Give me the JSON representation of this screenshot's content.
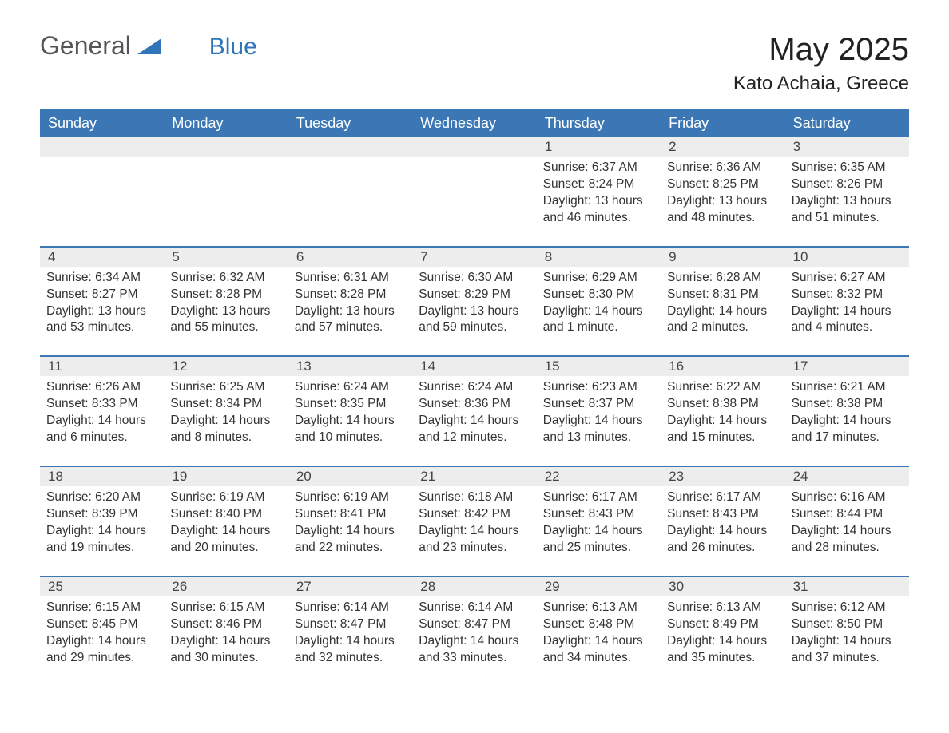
{
  "logo": {
    "word1": "General",
    "word2": "Blue",
    "triangle_color": "#2f76b8",
    "text_color": "#555555",
    "accent_color": "#2f76b8"
  },
  "title": "May 2025",
  "location": "Kato Achaia, Greece",
  "colors": {
    "header_bg": "#3a77b4",
    "header_text": "#ffffff",
    "daybar_bg": "#ededed",
    "row_border": "#3a77b4",
    "body_text": "#333333",
    "page_bg": "#ffffff"
  },
  "fonts": {
    "title_size_pt": 30,
    "location_size_pt": 18,
    "weekday_size_pt": 14,
    "body_size_pt": 12
  },
  "layout": {
    "columns": 7,
    "rows": 5,
    "first_weekday_index": 4
  },
  "weekdays": [
    "Sunday",
    "Monday",
    "Tuesday",
    "Wednesday",
    "Thursday",
    "Friday",
    "Saturday"
  ],
  "weeks": [
    [
      {
        "empty": true
      },
      {
        "empty": true
      },
      {
        "empty": true
      },
      {
        "empty": true
      },
      {
        "day": "1",
        "sunrise": "Sunrise: 6:37 AM",
        "sunset": "Sunset: 8:24 PM",
        "daylight": "Daylight: 13 hours and 46 minutes."
      },
      {
        "day": "2",
        "sunrise": "Sunrise: 6:36 AM",
        "sunset": "Sunset: 8:25 PM",
        "daylight": "Daylight: 13 hours and 48 minutes."
      },
      {
        "day": "3",
        "sunrise": "Sunrise: 6:35 AM",
        "sunset": "Sunset: 8:26 PM",
        "daylight": "Daylight: 13 hours and 51 minutes."
      }
    ],
    [
      {
        "day": "4",
        "sunrise": "Sunrise: 6:34 AM",
        "sunset": "Sunset: 8:27 PM",
        "daylight": "Daylight: 13 hours and 53 minutes."
      },
      {
        "day": "5",
        "sunrise": "Sunrise: 6:32 AM",
        "sunset": "Sunset: 8:28 PM",
        "daylight": "Daylight: 13 hours and 55 minutes."
      },
      {
        "day": "6",
        "sunrise": "Sunrise: 6:31 AM",
        "sunset": "Sunset: 8:28 PM",
        "daylight": "Daylight: 13 hours and 57 minutes."
      },
      {
        "day": "7",
        "sunrise": "Sunrise: 6:30 AM",
        "sunset": "Sunset: 8:29 PM",
        "daylight": "Daylight: 13 hours and 59 minutes."
      },
      {
        "day": "8",
        "sunrise": "Sunrise: 6:29 AM",
        "sunset": "Sunset: 8:30 PM",
        "daylight": "Daylight: 14 hours and 1 minute."
      },
      {
        "day": "9",
        "sunrise": "Sunrise: 6:28 AM",
        "sunset": "Sunset: 8:31 PM",
        "daylight": "Daylight: 14 hours and 2 minutes."
      },
      {
        "day": "10",
        "sunrise": "Sunrise: 6:27 AM",
        "sunset": "Sunset: 8:32 PM",
        "daylight": "Daylight: 14 hours and 4 minutes."
      }
    ],
    [
      {
        "day": "11",
        "sunrise": "Sunrise: 6:26 AM",
        "sunset": "Sunset: 8:33 PM",
        "daylight": "Daylight: 14 hours and 6 minutes."
      },
      {
        "day": "12",
        "sunrise": "Sunrise: 6:25 AM",
        "sunset": "Sunset: 8:34 PM",
        "daylight": "Daylight: 14 hours and 8 minutes."
      },
      {
        "day": "13",
        "sunrise": "Sunrise: 6:24 AM",
        "sunset": "Sunset: 8:35 PM",
        "daylight": "Daylight: 14 hours and 10 minutes."
      },
      {
        "day": "14",
        "sunrise": "Sunrise: 6:24 AM",
        "sunset": "Sunset: 8:36 PM",
        "daylight": "Daylight: 14 hours and 12 minutes."
      },
      {
        "day": "15",
        "sunrise": "Sunrise: 6:23 AM",
        "sunset": "Sunset: 8:37 PM",
        "daylight": "Daylight: 14 hours and 13 minutes."
      },
      {
        "day": "16",
        "sunrise": "Sunrise: 6:22 AM",
        "sunset": "Sunset: 8:38 PM",
        "daylight": "Daylight: 14 hours and 15 minutes."
      },
      {
        "day": "17",
        "sunrise": "Sunrise: 6:21 AM",
        "sunset": "Sunset: 8:38 PM",
        "daylight": "Daylight: 14 hours and 17 minutes."
      }
    ],
    [
      {
        "day": "18",
        "sunrise": "Sunrise: 6:20 AM",
        "sunset": "Sunset: 8:39 PM",
        "daylight": "Daylight: 14 hours and 19 minutes."
      },
      {
        "day": "19",
        "sunrise": "Sunrise: 6:19 AM",
        "sunset": "Sunset: 8:40 PM",
        "daylight": "Daylight: 14 hours and 20 minutes."
      },
      {
        "day": "20",
        "sunrise": "Sunrise: 6:19 AM",
        "sunset": "Sunset: 8:41 PM",
        "daylight": "Daylight: 14 hours and 22 minutes."
      },
      {
        "day": "21",
        "sunrise": "Sunrise: 6:18 AM",
        "sunset": "Sunset: 8:42 PM",
        "daylight": "Daylight: 14 hours and 23 minutes."
      },
      {
        "day": "22",
        "sunrise": "Sunrise: 6:17 AM",
        "sunset": "Sunset: 8:43 PM",
        "daylight": "Daylight: 14 hours and 25 minutes."
      },
      {
        "day": "23",
        "sunrise": "Sunrise: 6:17 AM",
        "sunset": "Sunset: 8:43 PM",
        "daylight": "Daylight: 14 hours and 26 minutes."
      },
      {
        "day": "24",
        "sunrise": "Sunrise: 6:16 AM",
        "sunset": "Sunset: 8:44 PM",
        "daylight": "Daylight: 14 hours and 28 minutes."
      }
    ],
    [
      {
        "day": "25",
        "sunrise": "Sunrise: 6:15 AM",
        "sunset": "Sunset: 8:45 PM",
        "daylight": "Daylight: 14 hours and 29 minutes."
      },
      {
        "day": "26",
        "sunrise": "Sunrise: 6:15 AM",
        "sunset": "Sunset: 8:46 PM",
        "daylight": "Daylight: 14 hours and 30 minutes."
      },
      {
        "day": "27",
        "sunrise": "Sunrise: 6:14 AM",
        "sunset": "Sunset: 8:47 PM",
        "daylight": "Daylight: 14 hours and 32 minutes."
      },
      {
        "day": "28",
        "sunrise": "Sunrise: 6:14 AM",
        "sunset": "Sunset: 8:47 PM",
        "daylight": "Daylight: 14 hours and 33 minutes."
      },
      {
        "day": "29",
        "sunrise": "Sunrise: 6:13 AM",
        "sunset": "Sunset: 8:48 PM",
        "daylight": "Daylight: 14 hours and 34 minutes."
      },
      {
        "day": "30",
        "sunrise": "Sunrise: 6:13 AM",
        "sunset": "Sunset: 8:49 PM",
        "daylight": "Daylight: 14 hours and 35 minutes."
      },
      {
        "day": "31",
        "sunrise": "Sunrise: 6:12 AM",
        "sunset": "Sunset: 8:50 PM",
        "daylight": "Daylight: 14 hours and 37 minutes."
      }
    ]
  ]
}
